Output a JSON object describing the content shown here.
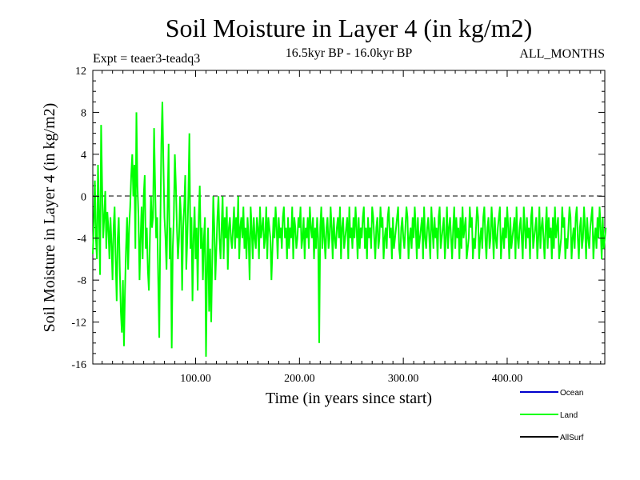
{
  "chart_data": {
    "type": "line",
    "title": "Soil Moisture in Layer 4 (in kg/m2)",
    "subtitle": "16.5kyr BP - 16.0kyr BP",
    "left_note": "Expt = teaer3-teadq3",
    "right_note": "ALL_MONTHS",
    "xlabel": "Time (in years since start)",
    "ylabel": "Soil Moisture in Layer 4 (in kg/m2)",
    "xlim": [
      1,
      494
    ],
    "ylim": [
      -16,
      12
    ],
    "x_ticks": [
      100,
      200,
      300,
      400
    ],
    "x_tick_labels": [
      "100.00",
      "200.00",
      "300.00",
      "400.00"
    ],
    "y_ticks": [
      -16,
      -12,
      -8,
      -4,
      0,
      4,
      8,
      12
    ],
    "y_tick_labels": [
      "-16",
      "-12",
      "-8",
      "-4",
      "0",
      "4",
      "8",
      "12"
    ],
    "zero_line": true,
    "grid": false,
    "legend": [
      {
        "name": "Ocean",
        "color": "#0000cc"
      },
      {
        "name": "Land",
        "color": "#00ff00"
      },
      {
        "name": "AllSurf",
        "color": "#000000"
      }
    ],
    "series": [
      {
        "name": "Land",
        "color": "#00ff00",
        "x_start": 1,
        "x_step": 1,
        "values": [
          -5.5,
          -2.5,
          1.5,
          -4,
          -6,
          3,
          -2,
          -7.5,
          6.8,
          1,
          -4,
          -2,
          0.5,
          -5,
          -1.5,
          -3,
          -6,
          -2,
          -4.5,
          -8,
          -3,
          -1,
          -6,
          -10,
          -4,
          -2,
          -7,
          -11,
          -13,
          -8,
          -14.3,
          -9,
          -5,
          -2,
          -7,
          -3,
          -1,
          2,
          4,
          0,
          3,
          -5,
          8,
          1,
          -2,
          -8,
          -4,
          -1,
          -6,
          0,
          2,
          -5,
          -3,
          -7,
          -9,
          -4,
          0,
          -3,
          -2,
          6.5,
          1,
          -4,
          -2,
          -8,
          -13.5,
          -3,
          5,
          9,
          3,
          -2,
          -4,
          -7,
          -1,
          5,
          -6,
          -3,
          -14.5,
          -5,
          -2,
          4,
          1,
          -3,
          -6,
          -4,
          0,
          -2,
          -9,
          -3,
          -1,
          2,
          -7,
          -4,
          0,
          6,
          -5,
          -2,
          -10,
          -4,
          -1,
          -6,
          -3,
          -9,
          -2,
          1,
          -5,
          -3,
          -8,
          -4,
          -2,
          -15.3,
          -7,
          -3,
          -11,
          -5,
          -12,
          -6,
          0,
          -3,
          -8,
          -5,
          -2,
          0,
          -4,
          -6,
          -3,
          0,
          -6,
          -2,
          -4,
          -1,
          -7,
          -3,
          -2,
          -4,
          -5,
          -3,
          -1,
          -5,
          -2,
          -4,
          0,
          -6,
          -3,
          -2,
          -4,
          -1,
          -5,
          -3,
          -6,
          -2,
          -4,
          -8,
          -1,
          -3,
          -6,
          -2,
          -4,
          -5,
          -2,
          -3,
          -6,
          -1,
          -4,
          -3,
          -2,
          -5,
          -4,
          -1,
          -6,
          -2,
          -3,
          -4,
          -8,
          -5,
          -2,
          -4,
          -1,
          -3,
          -6,
          -2,
          -4,
          -3,
          -5,
          -2,
          -1,
          -4,
          -3,
          -6,
          -2,
          -5,
          -3,
          -4,
          -1,
          -6,
          -2,
          -3,
          -5,
          -4,
          -2,
          -3,
          -1,
          -5,
          -4,
          -2,
          -6,
          -3,
          -4,
          -2,
          -5,
          -1,
          -3,
          -4,
          -2,
          -6,
          -3,
          -5,
          -2,
          -4,
          -14,
          -3,
          -1,
          -5,
          -2,
          -4,
          -6,
          -3,
          -2,
          -5,
          -4,
          -1,
          -3,
          -6,
          -2,
          -4,
          -5,
          -3,
          -2,
          -4,
          -1,
          -6,
          -3,
          -2,
          -5,
          -4,
          -3,
          -2,
          -6,
          -1,
          -4,
          -3,
          -5,
          -2,
          -4,
          -1,
          -3,
          -6,
          -2,
          -5,
          -3,
          -4,
          -2,
          -1,
          -5,
          -3,
          -6,
          -2,
          -4,
          -3,
          -5,
          -1,
          -2,
          -4,
          -6,
          -3,
          -2,
          -5,
          -4,
          -1,
          -3,
          -2,
          -6,
          -4,
          -3,
          -5,
          -2,
          -1,
          -4,
          -3,
          -6,
          -2,
          -5,
          -4,
          -3,
          -2,
          -1,
          -5,
          -6,
          -3,
          -2,
          -4,
          -5,
          -3,
          -1,
          -2,
          -6,
          -4,
          -3,
          -5,
          -2,
          -4,
          -1,
          -3,
          -6,
          -2,
          -5,
          -4,
          -3,
          -2,
          -6,
          -1,
          -4,
          -5,
          -3,
          -2,
          -4,
          -6,
          -1,
          -3,
          -5,
          -2,
          -4,
          -3,
          -6,
          -2,
          -1,
          -5,
          -4,
          -3,
          -2,
          -6,
          -4,
          -1,
          -5,
          -3,
          -2,
          -4,
          -6,
          -3,
          -1,
          -5,
          -2,
          -4,
          -3,
          -6,
          -2,
          -5,
          -1,
          -4,
          -3,
          -2,
          -6,
          -5,
          -4,
          -1,
          -3,
          -2,
          -6,
          -4,
          -5,
          -3,
          -1,
          -2,
          -6,
          -4,
          -3,
          -5,
          -2,
          -1,
          -4,
          -6,
          -3,
          -2,
          -5,
          -4,
          -1,
          -3,
          -6,
          -2,
          -4,
          -5,
          -3,
          -2,
          -1,
          -6,
          -4,
          -3,
          -5,
          -2,
          -4,
          -1,
          -3,
          -6,
          -2,
          -5,
          -4,
          -3,
          -2,
          -6,
          -1,
          -4,
          -5,
          -3,
          -2,
          -4,
          -6,
          -1,
          -3,
          -5,
          -2,
          -4,
          -3,
          -6,
          -2,
          -1,
          -5,
          -4,
          -3,
          -2,
          -6,
          -4,
          -1,
          -5,
          -3,
          -2,
          -4,
          -6,
          -3,
          -1,
          -5,
          -2,
          -4,
          -3,
          -6,
          -2,
          -5,
          -1,
          -4,
          -3,
          -2,
          -6,
          -5,
          -4,
          -1,
          -3,
          -2,
          -6,
          -4,
          -5,
          -3,
          -1,
          -2,
          -6,
          -4,
          -3,
          -5,
          -2,
          -1,
          -4,
          -6,
          -3,
          -2,
          -5,
          -4,
          -1,
          -3,
          -6,
          -2,
          -4,
          -5,
          -3,
          -2,
          -1,
          -6,
          -4,
          -3,
          -5,
          -2,
          -4,
          -1,
          -3,
          -6,
          -2,
          -5,
          -4,
          -3
        ]
      }
    ]
  }
}
